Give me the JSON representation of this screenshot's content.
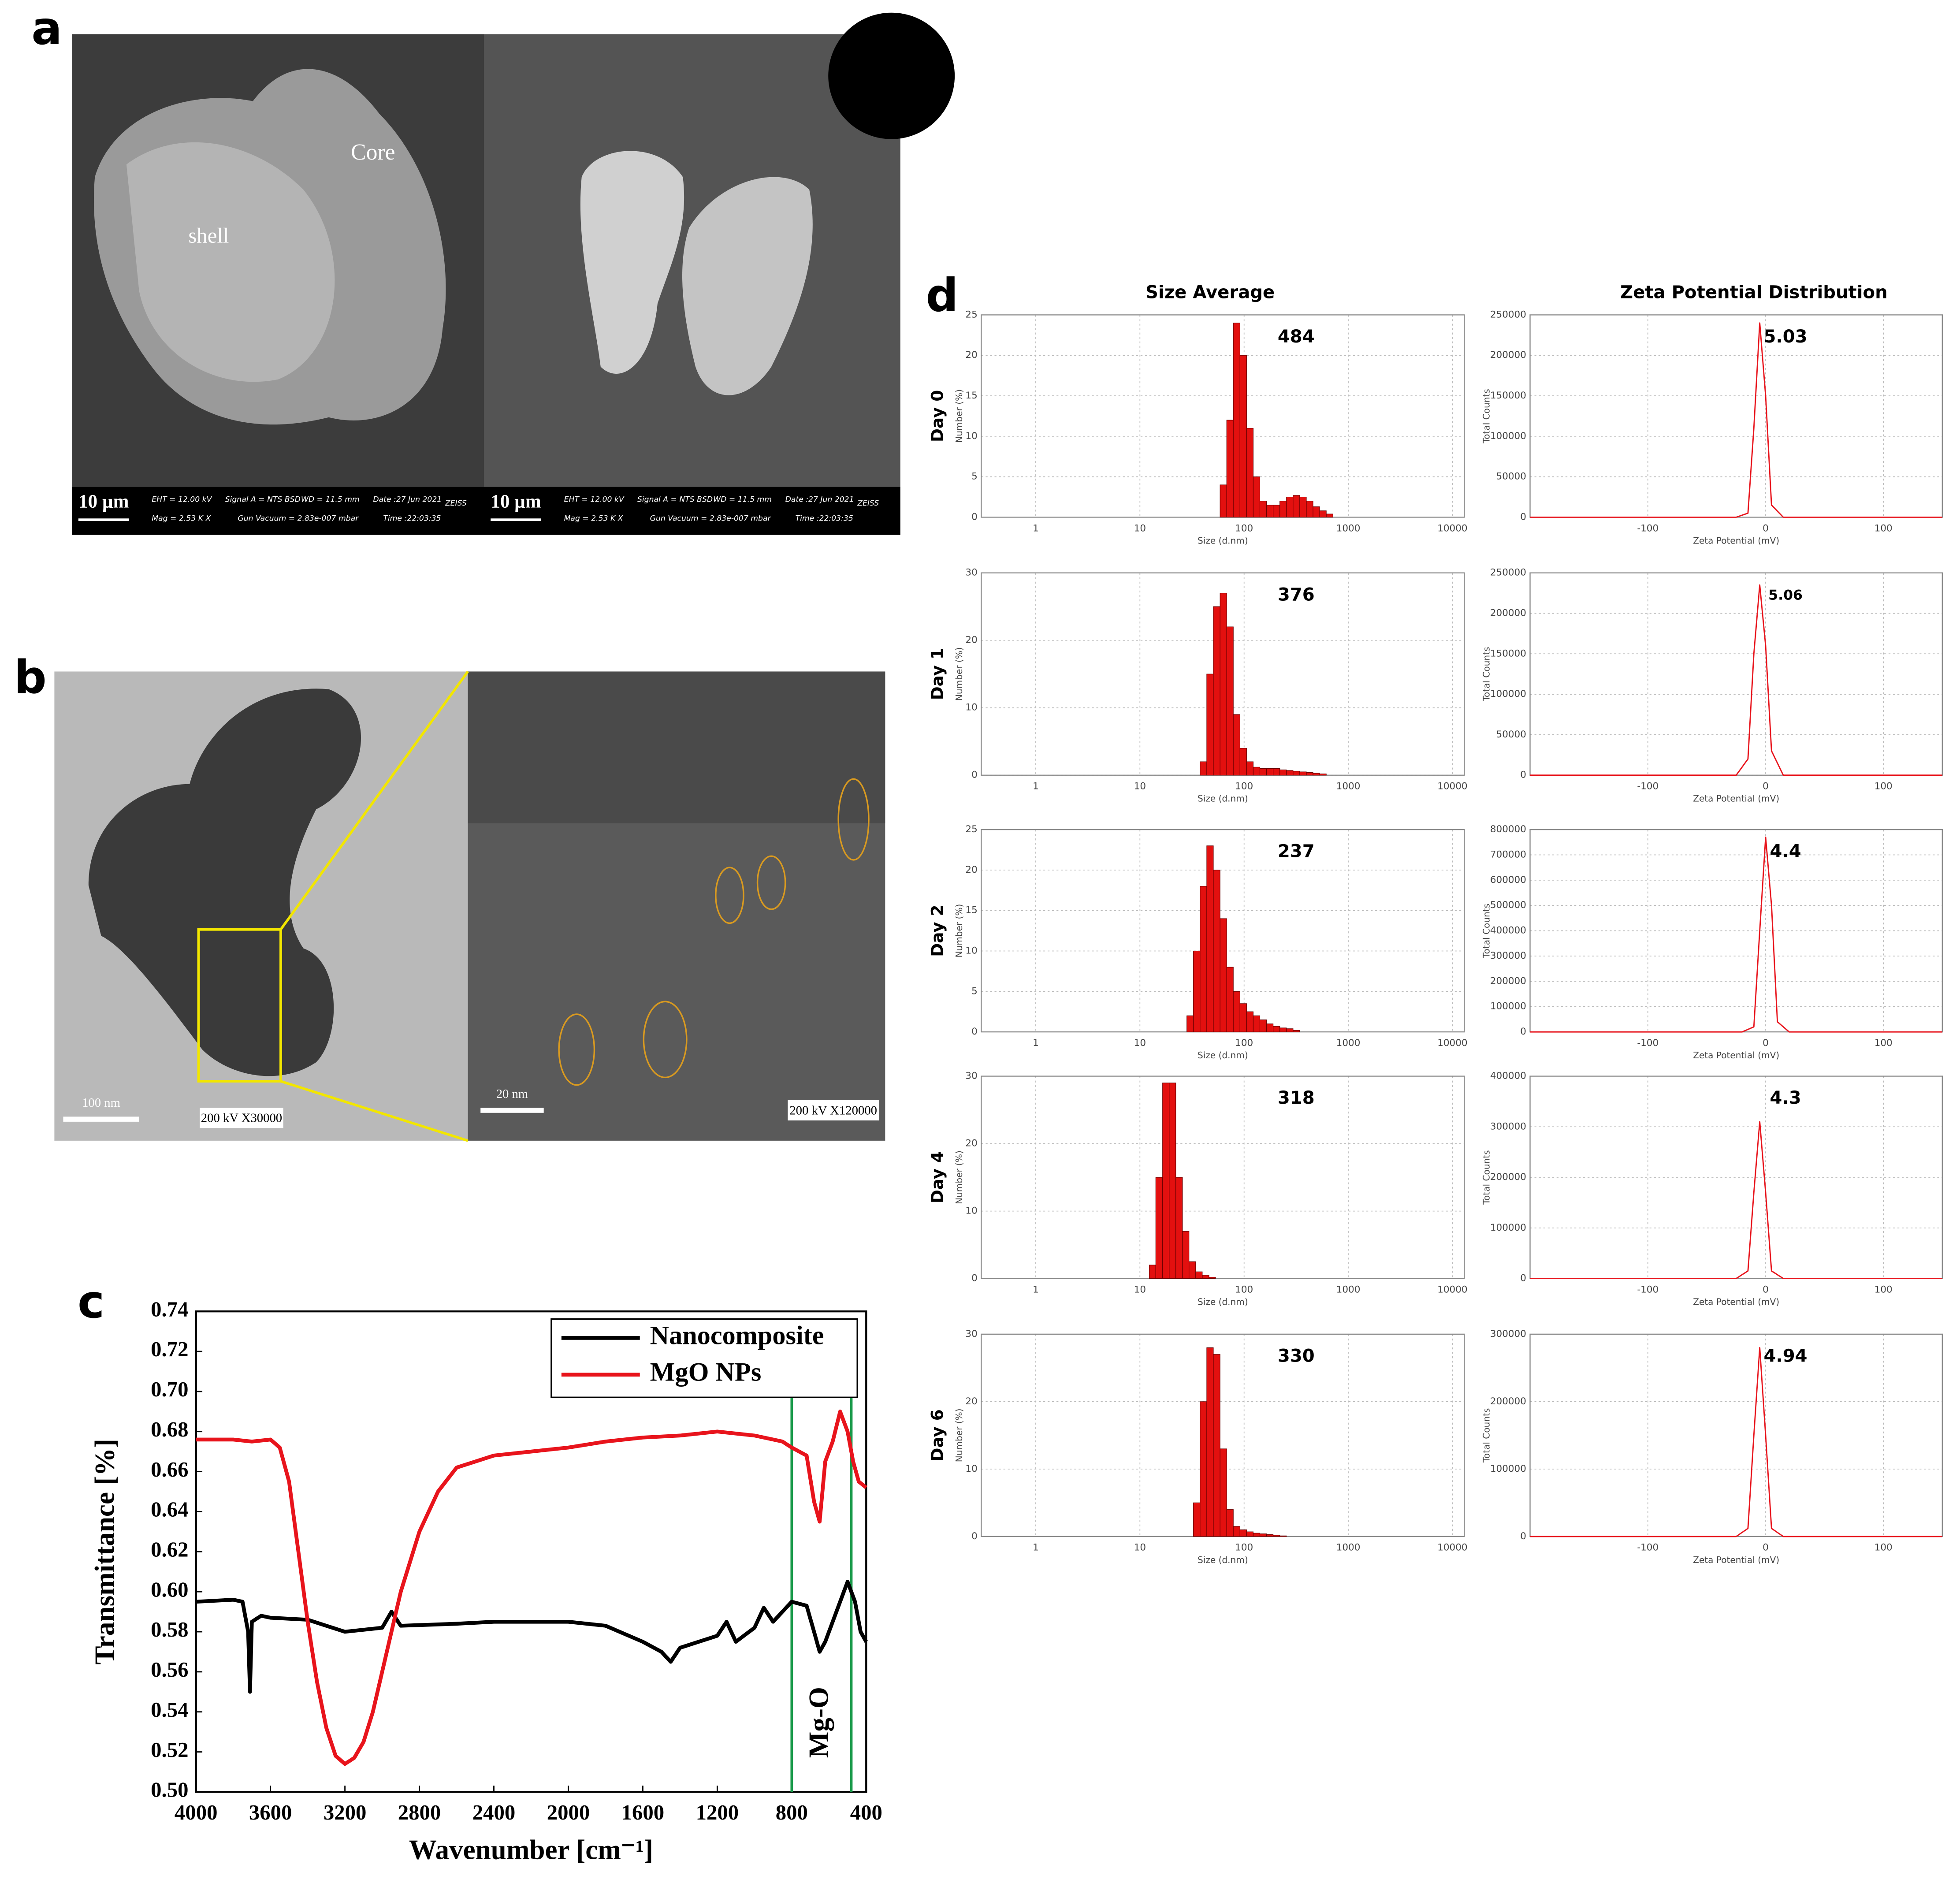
{
  "panels": {
    "labels": [
      "a",
      "b",
      "c",
      "d"
    ],
    "a": {
      "annotations": [
        "Core",
        "shell"
      ],
      "scale_bar": "10 µm",
      "info": [
        "EHT = 12.00 kV",
        "Mag = 2.53 K X",
        "Signal A = NTS BSD",
        "Gun Vacuum = 2.83e-007 mbar",
        "WD = 11.5 mm",
        "Date :27 Jun 2021",
        "Time :22:03:35",
        "ZEISS"
      ]
    },
    "b": {
      "scale_bars": [
        "100 nm",
        "20 nm"
      ],
      "captions": [
        "200 kV X30000",
        "200 kV X120000"
      ]
    },
    "d": {
      "column_titles": [
        "Size Average",
        "Zeta Potential Distribution"
      ]
    }
  },
  "chart_data": [
    {
      "type": "line",
      "xlabel": "Wavenumber [cm⁻¹]",
      "ylabel": "Transmittance [%]",
      "xlim": [
        4000,
        400
      ],
      "xticks": [
        4000,
        3600,
        3200,
        2800,
        2400,
        2000,
        1600,
        1200,
        800,
        400
      ],
      "ylim": [
        0.5,
        0.74
      ],
      "yticks": [
        {
          "value": 0.5,
          "label": "0.50"
        },
        0.52,
        0.54,
        0.56,
        0.58,
        {
          "value": 0.6,
          "label": "0.60"
        },
        0.62,
        0.64,
        0.66,
        0.68,
        {
          "value": 0.7,
          "label": "0.70"
        },
        0.72,
        0.74
      ],
      "grid": false,
      "legend": "upper right",
      "reference_lines": [
        800,
        480
      ],
      "reference_color": "#1a9a4a",
      "annotation": "Mg-O",
      "series": [
        {
          "name": "Nanocomposite",
          "color": "#000000",
          "x": [
            4000,
            3800,
            3750,
            3720,
            3710,
            3700,
            3650,
            3600,
            3400,
            3200,
            3000,
            2950,
            2900,
            2600,
            2400,
            2000,
            1800,
            1600,
            1500,
            1450,
            1400,
            1200,
            1150,
            1100,
            1000,
            950,
            900,
            850,
            800,
            720,
            680,
            650,
            620,
            580,
            520,
            500,
            460,
            430,
            400
          ],
          "values": [
            0.595,
            0.596,
            0.595,
            0.58,
            0.55,
            0.585,
            0.588,
            0.587,
            0.586,
            0.58,
            0.582,
            0.59,
            0.583,
            0.584,
            0.585,
            0.585,
            0.583,
            0.575,
            0.57,
            0.565,
            0.572,
            0.578,
            0.585,
            0.575,
            0.582,
            0.592,
            0.585,
            0.59,
            0.595,
            0.593,
            0.58,
            0.57,
            0.575,
            0.585,
            0.6,
            0.605,
            0.595,
            0.58,
            0.575
          ]
        },
        {
          "name": "MgO NPs",
          "color": "#e8141c",
          "x": [
            4000,
            3800,
            3700,
            3600,
            3550,
            3500,
            3450,
            3400,
            3350,
            3300,
            3250,
            3200,
            3150,
            3100,
            3050,
            3000,
            2950,
            2900,
            2800,
            2700,
            2600,
            2400,
            2200,
            2000,
            1800,
            1600,
            1400,
            1200,
            1000,
            850,
            800,
            720,
            680,
            650,
            620,
            580,
            540,
            500,
            470,
            440,
            400
          ],
          "values": [
            0.676,
            0.676,
            0.675,
            0.676,
            0.672,
            0.655,
            0.62,
            0.585,
            0.555,
            0.532,
            0.518,
            0.514,
            0.517,
            0.525,
            0.54,
            0.56,
            0.58,
            0.6,
            0.63,
            0.65,
            0.662,
            0.668,
            0.67,
            0.672,
            0.675,
            0.677,
            0.678,
            0.68,
            0.678,
            0.675,
            0.672,
            0.668,
            0.645,
            0.635,
            0.665,
            0.675,
            0.69,
            0.68,
            0.665,
            0.655,
            0.652
          ]
        }
      ]
    },
    {
      "type": "histogram",
      "row_label": "Day 0",
      "annotation": "484",
      "xlabel": "Size (d.nm)",
      "ylabel": "Number (%)",
      "xscale": "log",
      "xlim": [
        0.3,
        13000
      ],
      "xticks": [
        1,
        10,
        100,
        1000,
        10000
      ],
      "ylim": [
        0,
        25
      ],
      "yticks": [
        0,
        5,
        10,
        15,
        20,
        25
      ],
      "grid": true,
      "color": "#e3100f",
      "bins": [
        58.8,
        68.1,
        78.8,
        91.3,
        105.7,
        122.4,
        141.8,
        164.2,
        190.1,
        220.2,
        255,
        295.3,
        342,
        396.1,
        458.7,
        531.2,
        615.1,
        712.4
      ],
      "values": [
        4,
        12,
        24,
        20,
        11,
        5,
        2,
        1.5,
        1.5,
        2,
        2.5,
        2.7,
        2.5,
        2,
        1.3,
        0.8,
        0.4
      ]
    },
    {
      "type": "histogram",
      "row_label": "Day 1",
      "annotation": "376",
      "xlabel": "Size (d.nm)",
      "ylabel": "Number (%)",
      "xscale": "log",
      "xlim": [
        0.3,
        13000
      ],
      "xticks": [
        1,
        10,
        100,
        1000,
        10000
      ],
      "ylim": [
        0,
        30
      ],
      "yticks": [
        0,
        10,
        20,
        30
      ],
      "grid": true,
      "color": "#e3100f",
      "bins": [
        37.8,
        43.8,
        50.7,
        58.8,
        68.1,
        78.8,
        91.3,
        105.7,
        122.4,
        141.8,
        164.2,
        190.1,
        220.2,
        255,
        295.3,
        342,
        396.1,
        458.7,
        531.2,
        615.1
      ],
      "values": [
        2,
        15,
        25,
        27,
        22,
        9,
        4,
        2,
        1.2,
        1,
        1,
        1,
        0.8,
        0.7,
        0.6,
        0.5,
        0.4,
        0.3,
        0.2
      ]
    },
    {
      "type": "histogram",
      "row_label": "Day 2",
      "annotation": "237",
      "xlabel": "Size (d.nm)",
      "ylabel": "Number (%)",
      "xscale": "log",
      "xlim": [
        0.3,
        13000
      ],
      "xticks": [
        1,
        10,
        100,
        1000,
        10000
      ],
      "ylim": [
        0,
        25
      ],
      "yticks": [
        0,
        5,
        10,
        15,
        20,
        25
      ],
      "grid": true,
      "color": "#e3100f",
      "bins": [
        28.2,
        32.6,
        37.8,
        43.8,
        50.7,
        58.8,
        68.1,
        78.8,
        91.3,
        105.7,
        122.4,
        141.8,
        164.2,
        190.1,
        220.2,
        255,
        295.3,
        342
      ],
      "values": [
        2,
        10,
        18,
        23,
        20,
        14,
        8,
        5,
        3.5,
        2.5,
        2,
        1.5,
        1,
        0.7,
        0.5,
        0.4,
        0.2
      ]
    },
    {
      "type": "histogram",
      "row_label": "Day 4",
      "annotation": "318",
      "xlabel": "Size (d.nm)",
      "ylabel": "Number (%)",
      "xscale": "log",
      "xlim": [
        0.3,
        13000
      ],
      "xticks": [
        1,
        10,
        100,
        1000,
        10000
      ],
      "ylim": [
        0,
        30
      ],
      "yticks": [
        0,
        10,
        20,
        30
      ],
      "grid": true,
      "color": "#e3100f",
      "bins": [
        12.3,
        14.2,
        16.5,
        19.1,
        22.1,
        25.6,
        29.6,
        34.3,
        39.7,
        46,
        53.2
      ],
      "values": [
        2,
        15,
        29,
        29,
        15,
        7,
        2.5,
        1,
        0.5,
        0.2
      ]
    },
    {
      "type": "histogram",
      "row_label": "Day 6",
      "annotation": "330",
      "xlabel": "Size (d.nm)",
      "ylabel": "Number (%)",
      "xscale": "log",
      "xlim": [
        0.3,
        13000
      ],
      "xticks": [
        1,
        10,
        100,
        1000,
        10000
      ],
      "ylim": [
        0,
        30
      ],
      "yticks": [
        0,
        10,
        20,
        30
      ],
      "grid": true,
      "color": "#e3100f",
      "bins": [
        32.6,
        37.8,
        43.8,
        50.7,
        58.8,
        68.1,
        78.8,
        91.3,
        105.7,
        122.4,
        141.8,
        164.2,
        190.1,
        220.2,
        255
      ],
      "values": [
        5,
        20,
        28,
        27,
        13,
        4,
        1.5,
        1,
        0.7,
        0.5,
        0.4,
        0.3,
        0.2,
        0.1
      ]
    },
    {
      "type": "line",
      "annotation": "5.03",
      "xlabel": "Zeta Potential (mV)",
      "ylabel": "Total Counts",
      "xlim": [
        -200,
        150
      ],
      "xticks": [
        -100,
        0,
        100
      ],
      "ylim": [
        0,
        250000
      ],
      "yticks": [
        0,
        50000,
        100000,
        150000,
        200000,
        250000
      ],
      "grid": true,
      "series": [
        {
          "color": "#e8141c",
          "x": [
            -200,
            -25,
            -15,
            -10,
            -5,
            0,
            5,
            15,
            150
          ],
          "values": [
            0,
            0,
            5000,
            110000,
            240000,
            150000,
            15000,
            0,
            0
          ]
        }
      ]
    },
    {
      "type": "line",
      "annotation": "5.06",
      "xlabel": "Zeta Potential (mV)",
      "ylabel": "Total Counts",
      "xlim": [
        -200,
        150
      ],
      "xticks": [
        -100,
        0,
        100
      ],
      "ylim": [
        0,
        250000
      ],
      "yticks": [
        0,
        50000,
        100000,
        150000,
        200000,
        250000
      ],
      "grid": true,
      "series": [
        {
          "color": "#e8141c",
          "x": [
            -200,
            -25,
            -15,
            -10,
            -5,
            0,
            5,
            15,
            150
          ],
          "values": [
            0,
            0,
            20000,
            150000,
            235000,
            160000,
            30000,
            0,
            0
          ]
        }
      ]
    },
    {
      "type": "line",
      "annotation": "4.4",
      "xlabel": "Zeta Potential (mV)",
      "ylabel": "Total Counts",
      "xlim": [
        -200,
        150
      ],
      "xticks": [
        -100,
        0,
        100
      ],
      "ylim": [
        0,
        800000
      ],
      "yticks": [
        0,
        100000,
        200000,
        300000,
        400000,
        500000,
        600000,
        700000,
        800000
      ],
      "grid": true,
      "series": [
        {
          "color": "#e8141c",
          "x": [
            -200,
            -20,
            -10,
            -5,
            0,
            5,
            10,
            20,
            150
          ],
          "values": [
            0,
            0,
            20000,
            400000,
            770000,
            500000,
            40000,
            0,
            0
          ]
        }
      ]
    },
    {
      "type": "line",
      "annotation": "4.3",
      "xlabel": "Zeta Potential (mV)",
      "ylabel": "Total Counts",
      "xlim": [
        -200,
        150
      ],
      "xticks": [
        -100,
        0,
        100
      ],
      "ylim": [
        0,
        400000
      ],
      "yticks": [
        0,
        100000,
        200000,
        300000,
        400000
      ],
      "grid": true,
      "series": [
        {
          "color": "#e8141c",
          "x": [
            -200,
            -25,
            -15,
            -10,
            -5,
            0,
            5,
            15,
            150
          ],
          "values": [
            0,
            0,
            15000,
            170000,
            310000,
            170000,
            15000,
            0,
            0
          ]
        }
      ]
    },
    {
      "type": "line",
      "annotation": "4.94",
      "xlabel": "Zeta Potential (mV)",
      "ylabel": "Total Counts",
      "xlim": [
        -200,
        150
      ],
      "xticks": [
        -100,
        0,
        100
      ],
      "ylim": [
        0,
        300000
      ],
      "yticks": [
        0,
        100000,
        200000,
        300000
      ],
      "grid": true,
      "series": [
        {
          "color": "#e8141c",
          "x": [
            -200,
            -25,
            -15,
            -10,
            -5,
            0,
            5,
            15,
            150
          ],
          "values": [
            0,
            0,
            12000,
            150000,
            280000,
            150000,
            12000,
            0,
            0
          ]
        }
      ]
    }
  ]
}
